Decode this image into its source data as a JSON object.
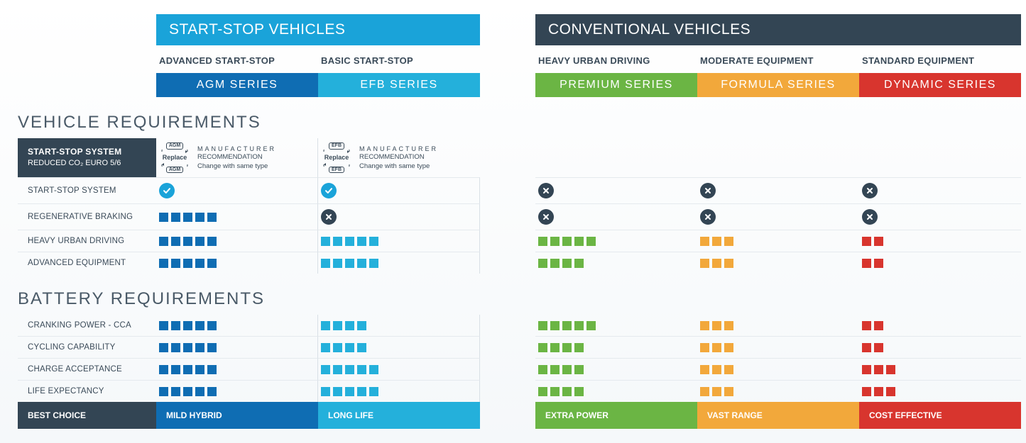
{
  "colors": {
    "agm": "#0f6db3",
    "efb": "#24b0db",
    "premium": "#6bb544",
    "formula": "#f2a83b",
    "dynamic": "#d8352e",
    "dark": "#334554",
    "cat_ss": "#1aa3d9"
  },
  "categories": {
    "start_stop": "START-STOP VEHICLES",
    "conventional": "CONVENTIONAL VEHICLES"
  },
  "series": [
    {
      "key": "agm",
      "sub": "ADVANCED START-STOP",
      "name": "AGM  SERIES",
      "footer": "MILD HYBRID"
    },
    {
      "key": "efb",
      "sub": "BASIC START-STOP",
      "name": "EFB  SERIES",
      "footer": "LONG LIFE"
    },
    {
      "key": "premium",
      "sub": "HEAVY URBAN DRIVING",
      "name": "PREMIUM SERIES",
      "footer": "EXTRA POWER"
    },
    {
      "key": "formula",
      "sub": "MODERATE EQUIPMENT",
      "name": "FORMULA SERIES",
      "footer": "VAST RANGE"
    },
    {
      "key": "dynamic",
      "sub": "STANDARD EQUIPMENT",
      "name": "DYNAMIC SERIES",
      "footer": "COST EFFECTIVE"
    }
  ],
  "sections": {
    "vehicle": "VEHICLE REQUIREMENTS",
    "battery": "BATTERY REQUIREMENTS"
  },
  "rowhead": {
    "l1": "START-STOP SYSTEM",
    "l2": "REDUCED CO₂  EURO 5/6"
  },
  "mfr": {
    "line1": "MANUFACTURER",
    "line2": "RECOMMENDATION",
    "line3": "Change with same type",
    "tag_agm": "AGM",
    "tag_efb": "EFB",
    "replace": "Replace"
  },
  "vehicle_rows": [
    {
      "label": "START-STOP SYSTEM",
      "vals": [
        "check",
        "check",
        "cross",
        "cross",
        "cross"
      ]
    },
    {
      "label": "REGENERATIVE BRAKING",
      "vals": [
        5,
        "cross",
        "cross",
        "cross",
        "cross"
      ]
    },
    {
      "label": "HEAVY URBAN DRIVING",
      "vals": [
        5,
        5,
        5,
        3,
        2
      ]
    },
    {
      "label": "ADVANCED EQUIPMENT",
      "vals": [
        5,
        5,
        4,
        3,
        2
      ]
    }
  ],
  "battery_rows": [
    {
      "label": "CRANKING POWER - CCA",
      "vals": [
        5,
        4,
        5,
        3,
        2
      ]
    },
    {
      "label": "CYCLING CAPABILITY",
      "vals": [
        5,
        4,
        4,
        3,
        2
      ]
    },
    {
      "label": "CHARGE ACCEPTANCE",
      "vals": [
        5,
        5,
        4,
        3,
        3
      ]
    },
    {
      "label": "LIFE EXPECTANCY",
      "vals": [
        5,
        5,
        4,
        3,
        3
      ]
    }
  ],
  "footer_label": "BEST CHOICE"
}
